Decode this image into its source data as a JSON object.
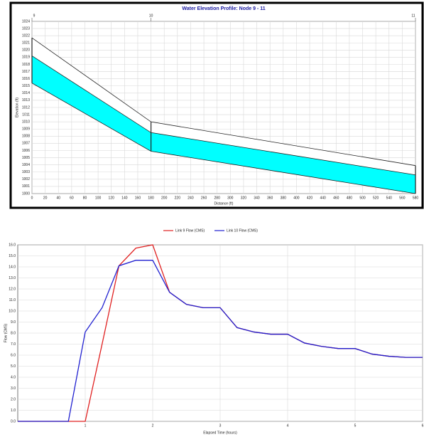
{
  "chart_data": [
    {
      "type": "profile",
      "title": "Water Elevation Profile: Node 9 - 11",
      "xlabel": "Distance (ft)",
      "ylabel": "Elevation (ft)",
      "x": [
        0,
        180,
        580
      ],
      "node_labels": [
        "9",
        "10",
        "11"
      ],
      "crown": [
        1021.7,
        1010,
        1003.9
      ],
      "water": [
        1019.2,
        1008.5,
        1002.6
      ],
      "invert": [
        1015.4,
        1005.9,
        1000
      ],
      "water_color": "#00ffff",
      "grid": true,
      "xlim": [
        0,
        580
      ],
      "xticks": [
        0,
        20,
        40,
        60,
        80,
        100,
        120,
        140,
        160,
        180,
        200,
        220,
        240,
        260,
        280,
        300,
        320,
        340,
        360,
        380,
        400,
        420,
        440,
        460,
        480,
        500,
        520,
        540,
        560,
        580
      ],
      "ylim": [
        1000,
        1024
      ],
      "yticks": [
        1000,
        1001,
        1002,
        1003,
        1004,
        1005,
        1006,
        1007,
        1008,
        1009,
        1010,
        1011,
        1012,
        1013,
        1014,
        1015,
        1016,
        1017,
        1018,
        1019,
        1020,
        1021,
        1022,
        1023,
        1024
      ]
    },
    {
      "type": "line",
      "xlabel": "Elapsed Time (hours)",
      "ylabel": "Flow (CMS)",
      "grid": true,
      "x": [
        0,
        0.25,
        0.5,
        0.75,
        1,
        1.25,
        1.5,
        1.75,
        2,
        2.25,
        2.5,
        2.75,
        3,
        3.25,
        3.5,
        3.75,
        4,
        4.25,
        4.5,
        4.75,
        5,
        5.25,
        5.5,
        5.75,
        6
      ],
      "series": [
        {
          "name": "Link 9 Flow (CMS)",
          "color": "#e02020",
          "values": [
            0,
            0,
            0,
            0,
            0,
            7.0,
            14.1,
            15.7,
            16.0,
            11.7,
            10.6,
            10.3,
            10.3,
            8.5,
            8.1,
            7.9,
            7.9,
            7.1,
            6.8,
            6.6,
            6.6,
            6.1,
            5.9,
            5.8,
            5.8
          ]
        },
        {
          "name": "Link 10 Flow (CMS)",
          "color": "#2020d0",
          "values": [
            0,
            0,
            0,
            0,
            8.1,
            10.3,
            14.1,
            14.6,
            14.6,
            11.7,
            10.6,
            10.3,
            10.3,
            8.5,
            8.1,
            7.9,
            7.9,
            7.1,
            6.8,
            6.6,
            6.6,
            6.1,
            5.9,
            5.8,
            5.8
          ]
        }
      ],
      "xlim": [
        0,
        6
      ],
      "xticks": [
        1,
        2,
        3,
        4,
        5,
        6
      ],
      "ylim": [
        0,
        16
      ],
      "yticks": [
        {
          "value": 0,
          "label": "0.0"
        },
        {
          "value": 1,
          "label": "1.0"
        },
        {
          "value": 2,
          "label": "2.0"
        },
        {
          "value": 3,
          "label": "3.0"
        },
        {
          "value": 4,
          "label": "4.0"
        },
        {
          "value": 5,
          "label": "5.0"
        },
        {
          "value": 6,
          "label": "6.0"
        },
        {
          "value": 7,
          "label": "7.0"
        },
        {
          "value": 8,
          "label": "8.0"
        },
        {
          "value": 9,
          "label": "9.0"
        },
        {
          "value": 10,
          "label": "10.0"
        },
        {
          "value": 11,
          "label": "11.0"
        },
        {
          "value": 12,
          "label": "12.0"
        },
        {
          "value": 13,
          "label": "13.0"
        },
        {
          "value": 14,
          "label": "14.0"
        },
        {
          "value": 15,
          "label": "15.0"
        },
        {
          "value": 16,
          "label": "16.0"
        }
      ]
    }
  ]
}
